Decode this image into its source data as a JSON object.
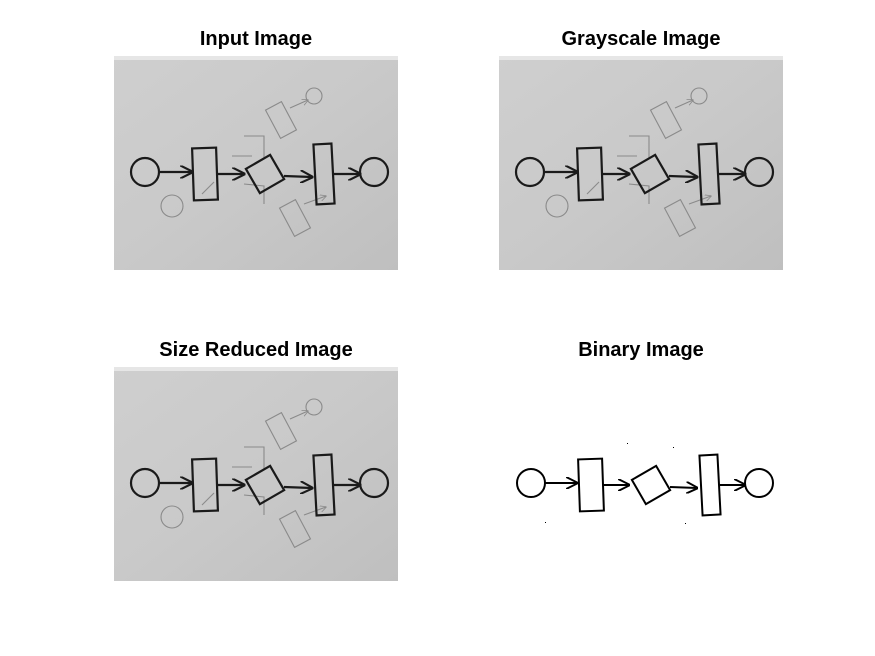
{
  "panels": [
    {
      "title": "Input Image"
    },
    {
      "title": "Grayscale Image"
    },
    {
      "title": "Size Reduced Image"
    },
    {
      "title": "Binary Image"
    }
  ],
  "colors": {
    "paper_color": "#c8c8c8",
    "paper_color_dark": "#bdbdbd",
    "ink_dark": "#1a1a1a",
    "ink_faint": "#8a8a8a",
    "binary_background": "#ffffff"
  }
}
